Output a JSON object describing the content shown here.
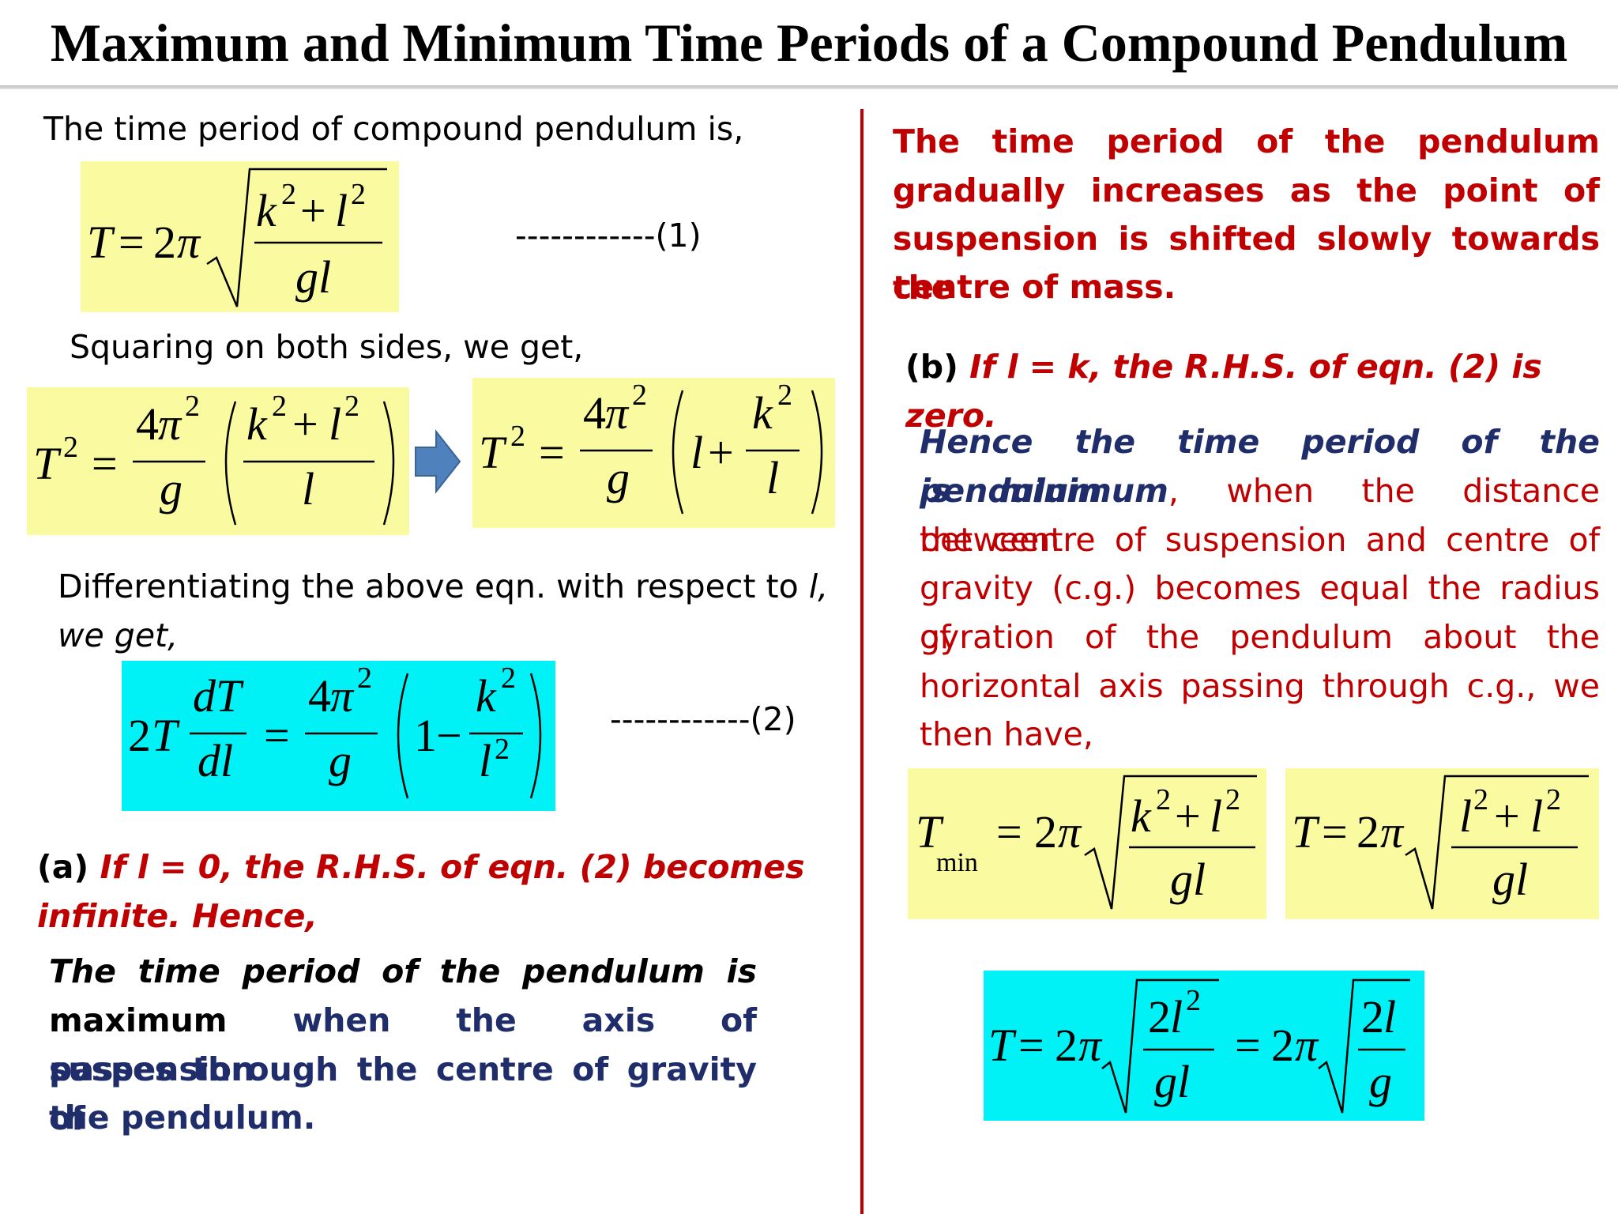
{
  "title": "Maximum and Minimum Time Periods of a Compound Pendulum",
  "left": {
    "intro": "The time period of compound pendulum is,",
    "eq1_tag": "------------(1)",
    "squaring": "Squaring on both sides, we get,",
    "diff_line1": "Differentiating the above eqn. with respect to ",
    "diff_var": "l,",
    "diff_line2": "we get,",
    "eq2_tag": "------------(2)",
    "a_label": "(a)",
    "a_text1": "If l = 0, the R.H.S. of eqn. (2) becomes",
    "a_text2": "infinite. Hence,",
    "max_line1": "The time period of the pendulum is",
    "max_line2_bold": "maximum",
    "max_line2_rest": " when the axis of suspension",
    "max_line3": "passes through the centre of gravity of",
    "max_line4": "the pendulum."
  },
  "right": {
    "red1": "The time period of the pendulum",
    "red2": "gradually increases as the point of",
    "red3": "suspension is shifted slowly towards the",
    "red4": "centre of mass.",
    "b_label": "(b)",
    "b_text": "If l = k, the R.H.S. of eqn. (2) is zero.",
    "min_line1": "Hence the time period of the pendulum",
    "min_line2_bold": "is minimum",
    "min_line2_rest": ", when the distance between",
    "min_line3": "the centre of suspension and centre of",
    "min_line4": "gravity (c.g.) becomes equal the radius of",
    "min_line5": "gyration of the pendulum about the",
    "min_line6": "horizontal axis passing through c.g., we",
    "min_line7": "then have,"
  },
  "colors": {
    "accent_red": "#c00000",
    "navy": "#1f2d6b",
    "yellow_box": "#fafaa0",
    "cyan_box": "#00f2f7",
    "arrow": "#4f81bd"
  },
  "icons": {
    "implies_arrow": "right-arrow-icon"
  }
}
